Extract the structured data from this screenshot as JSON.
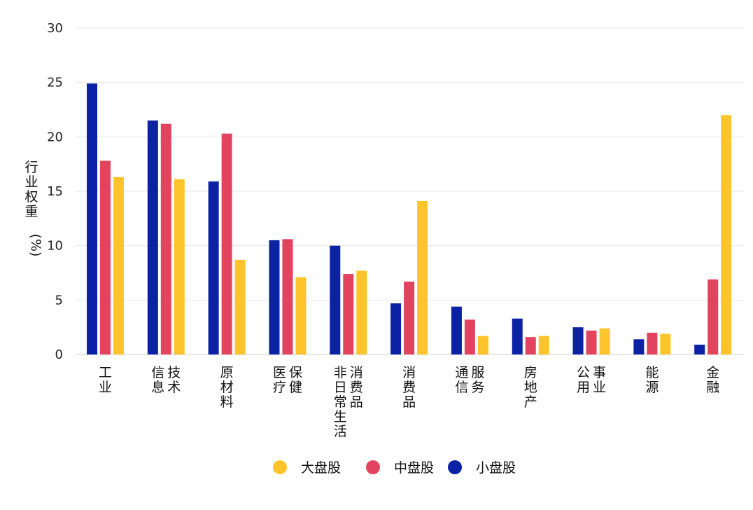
{
  "chart_data": {
    "type": "bar",
    "ylabel": "行业权重",
    "ylabel_unit": "(%)",
    "ylim": [
      0,
      30
    ],
    "yticks": [
      0,
      5,
      10,
      15,
      20,
      25,
      30
    ],
    "grid": true,
    "legend_position": "bottom-center",
    "categories": [
      [
        "工业"
      ],
      [
        "信息",
        "技术"
      ],
      [
        "原材料"
      ],
      [
        "医疗",
        "保健"
      ],
      [
        "非日常生活",
        "消费品"
      ],
      [
        "消费品"
      ],
      [
        "通信",
        "服务"
      ],
      [
        "房地产"
      ],
      [
        "公用",
        "事业"
      ],
      [
        "能源"
      ],
      [
        "金融"
      ]
    ],
    "series": [
      {
        "name": "小盘股",
        "color": "#0b22a4",
        "values": [
          24.9,
          21.5,
          15.9,
          10.5,
          10.0,
          4.7,
          4.4,
          3.3,
          2.5,
          1.4,
          0.9
        ]
      },
      {
        "name": "中盘股",
        "color": "#e2445f",
        "values": [
          17.8,
          21.2,
          20.3,
          10.6,
          7.4,
          6.7,
          3.2,
          1.6,
          2.2,
          2.0,
          6.9
        ]
      },
      {
        "name": "大盘股",
        "color": "#fdc42c",
        "values": [
          16.3,
          16.1,
          8.7,
          7.1,
          7.7,
          14.1,
          1.7,
          1.7,
          2.4,
          1.9,
          22.0
        ]
      }
    ],
    "legend": [
      {
        "name": "大盘股",
        "color": "#fdc42c"
      },
      {
        "name": "中盘股",
        "color": "#e2445f"
      },
      {
        "name": "小盘股",
        "color": "#0b22a4"
      }
    ]
  }
}
